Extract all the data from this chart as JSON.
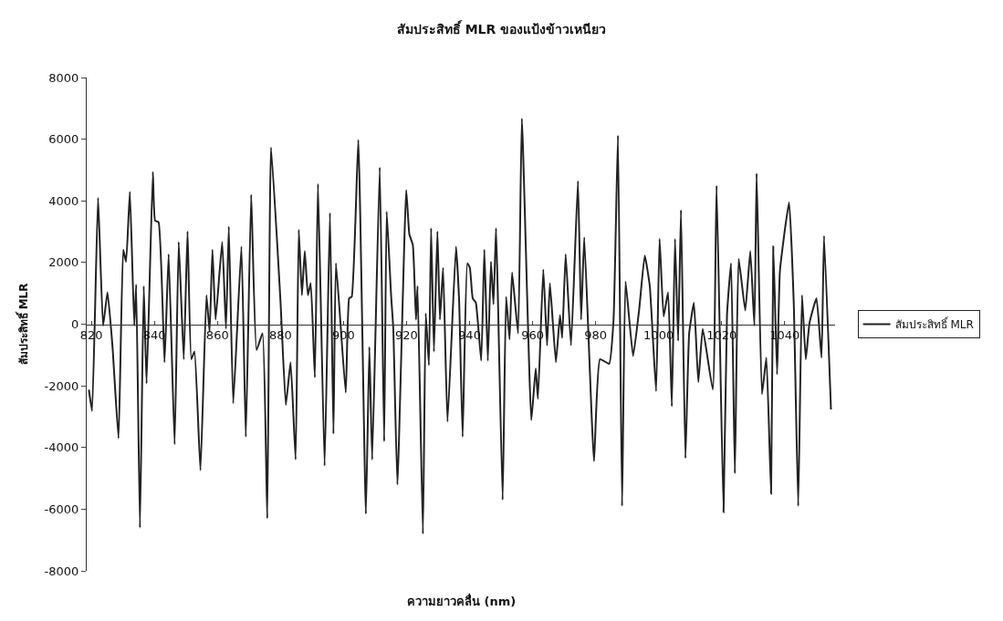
{
  "chart_data": {
    "type": "line",
    "title": "สัมประสิทธิ์ MLR ของแป้งข้าวเหนียว",
    "xlabel": "ความยาวคลื่น (nm)",
    "ylabel": "สัมประสิทธิ์ MLR",
    "xlim": [
      818.5,
      1056
    ],
    "xticks": [
      820,
      840,
      860,
      880,
      900,
      920,
      940,
      960,
      980,
      1000,
      1020,
      1040
    ],
    "ylim": [
      -8000,
      8000
    ],
    "yticks": [
      -8000,
      -6000,
      -4000,
      -2000,
      0,
      2000,
      4000,
      6000,
      8000
    ],
    "legend": "right",
    "marker": "none",
    "line_style": "solid",
    "series": [
      {
        "name": "สัมประสิทธิ์ MLR",
        "color": "#222222",
        "x": [
          819.2,
          820.2,
          822.1,
          823.7,
          825.1,
          826.7,
          828.6,
          830.1,
          831.0,
          832.2,
          833.6,
          834.2,
          835.4,
          836.6,
          837.5,
          839.5,
          840.2,
          841.3,
          843.2,
          844.5,
          846.4,
          847.7,
          849.3,
          850.5,
          851.7,
          852.7,
          854.6,
          856.5,
          857.5,
          858.4,
          859.4,
          861.5,
          862.7,
          863.6,
          865.0,
          867.6,
          869.0,
          870.7,
          872.4,
          874.3,
          875.8,
          877.0,
          880.0,
          881.7,
          883.2,
          884.8,
          885.8,
          886.8,
          887.7,
          888.7,
          889.6,
          890.9,
          891.9,
          894.0,
          895.7,
          896.8,
          897.6,
          900.7,
          901.8,
          902.6,
          904.7,
          907.1,
          908.2,
          909.1,
          911.5,
          912.9,
          913.7,
          915.1,
          915.8,
          917.1,
          919.9,
          920.9,
          922.0,
          923.0,
          923.5,
          925.2,
          926.1,
          927.1,
          927.8,
          928.7,
          929.8,
          930.6,
          931.6,
          933.0,
          935.7,
          936.7,
          937.8,
          939.3,
          940.1,
          941.0,
          942.0,
          943.7,
          944.7,
          945.8,
          946.8,
          947.6,
          948.4,
          949.0,
          950.5,
          951.6,
          952.7,
          953.5,
          955.4,
          956.6,
          959.6,
          961.0,
          961.7,
          963.4,
          964.6,
          965.5,
          967.4,
          968.7,
          969.4,
          970.5,
          972.2,
          974.4,
          975.4,
          976.4,
          979.5,
          981.4,
          984.3,
          985.7,
          987.1,
          988.4,
          989.5,
          991.9,
          993.9,
          995.6,
          997.2,
          999.2,
          1000.3,
          1001.6,
          1003.0,
          1004.2,
          1005.2,
          1006.2,
          1007.1,
          1008.5,
          1009.7,
          1011.2,
          1012.6,
          1014.0,
          1017.2,
          1018.4,
          1020.6,
          1021.7,
          1023.0,
          1024.2,
          1025.4,
          1027.5,
          1029.1,
          1030.4,
          1031.1,
          1032.8,
          1034.2,
          1035.7,
          1036.4,
          1037.6,
          1038.5,
          1041.4,
          1042.9,
          1044.3,
          1045.5,
          1046.7,
          1047.9,
          1050.1,
          1051.7,
          1052.5,
          1054.7
        ],
        "values": [
          -2124,
          -2815,
          4100,
          -50,
          1037,
          -741,
          -3705,
          2420,
          2025,
          4297,
          -50,
          1284,
          -6600,
          1235,
          -1926,
          4940,
          3358,
          3309,
          -1235,
          2272,
          -3900,
          2667,
          -1136,
          3012,
          -1136,
          -889,
          -4741,
          938,
          -247,
          2420,
          148,
          2667,
          -148,
          3161,
          -2568,
          2519,
          -3655,
          4199,
          -840,
          -296,
          -6300,
          5728,
          741,
          -2617,
          -1235,
          -4395,
          3062,
          938,
          2371,
          938,
          1333,
          -1728,
          4544,
          -4593,
          3605,
          -3556,
          1976,
          -2222,
          840,
          889,
          5976,
          -6150,
          -741,
          -4395,
          5087,
          -3803,
          3654,
          938,
          -148,
          -5200,
          4346,
          2914,
          2568,
          148,
          1235,
          -6800,
          346,
          -1334,
          3111,
          -889,
          3012,
          148,
          1827,
          -3161,
          2519,
          741,
          -3655,
          1976,
          1827,
          840,
          692,
          -1186,
          2420,
          -1186,
          2025,
          642,
          3111,
          840,
          -5700,
          889,
          -494,
          1679,
          -296,
          6667,
          -3112,
          -1432,
          -2420,
          1778,
          -691,
          1333,
          -1235,
          296,
          -445,
          2272,
          -691,
          4643,
          148,
          2815,
          -4445,
          -1136,
          -1284,
          148,
          6124,
          -5900,
          1383,
          -1037,
          543,
          2223,
          1235,
          -2173,
          2766,
          247,
          1037,
          -2667,
          2766,
          -543,
          3704,
          -4346,
          -296,
          692,
          -1877,
          -148,
          -2124,
          4494,
          -6100,
          296,
          1976,
          -4840,
          2124,
          445,
          2371,
          -49,
          4890,
          -2272,
          -1086,
          -5500,
          2519,
          -1630,
          1729,
          3951,
          642,
          -5900,
          938,
          -1136,
          49,
          840,
          -1086,
          2865,
          -2766
        ]
      }
    ]
  }
}
